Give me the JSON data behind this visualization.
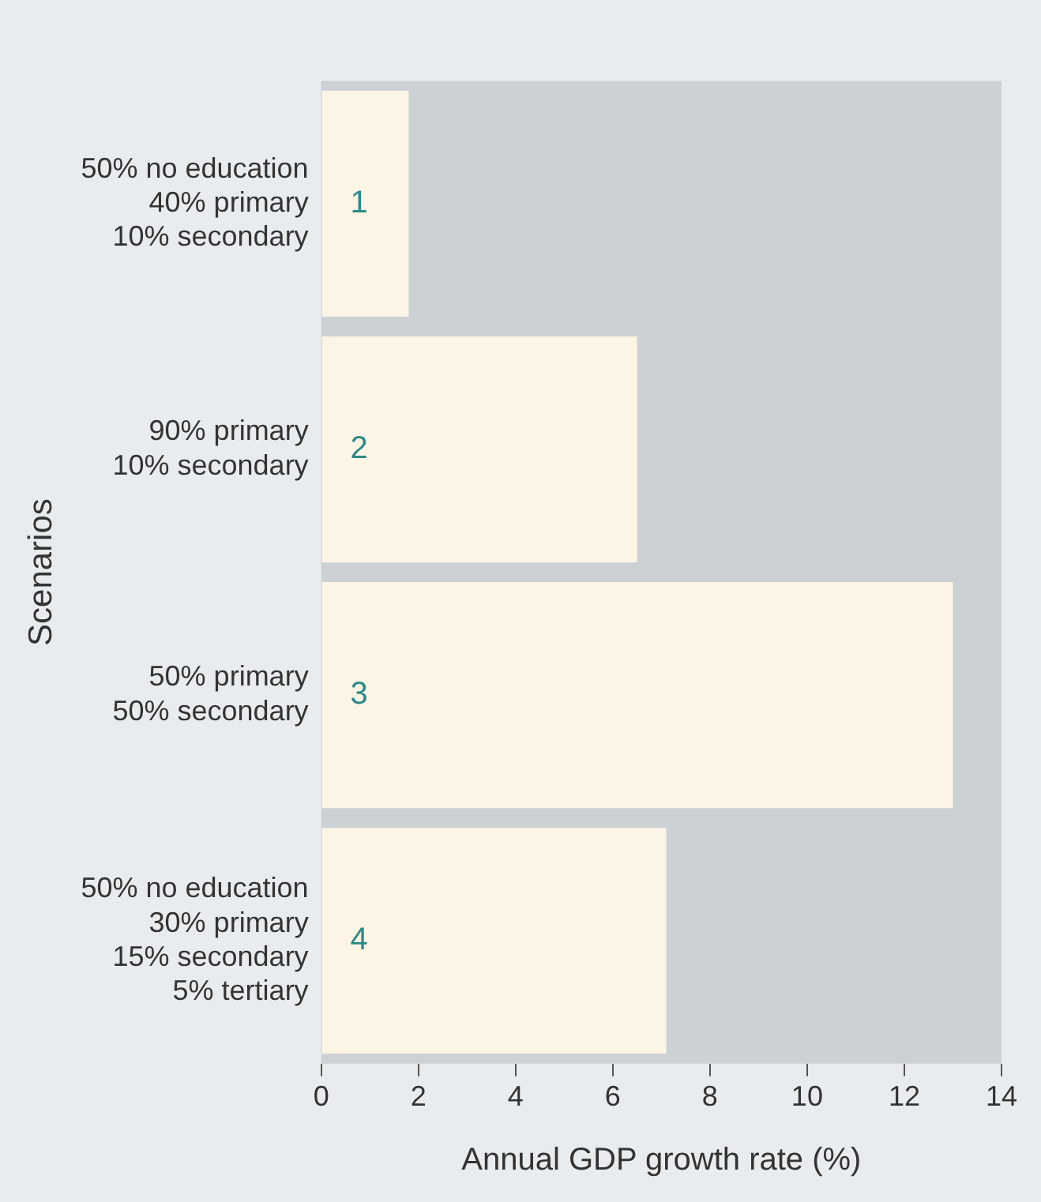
{
  "chart_data": {
    "type": "bar",
    "orientation": "horizontal",
    "xlabel": "Annual GDP growth rate (%)",
    "ylabel": "Scenarios",
    "categories": [
      "50% no education\n40% primary\n10% secondary",
      "90% primary\n10% secondary",
      "50% primary\n50% secondary",
      "50% no education\n30% primary\n15% secondary\n5% tertiary"
    ],
    "values": [
      1.8,
      6.5,
      13.0,
      7.1
    ],
    "color": "#fcf4e4",
    "xlim": [
      0,
      14
    ],
    "xticks": [
      0,
      2,
      4,
      6,
      8,
      10,
      12,
      14
    ],
    "grid": false,
    "legend": false,
    "annotations": [
      "1",
      "2",
      "3",
      "4"
    ]
  }
}
